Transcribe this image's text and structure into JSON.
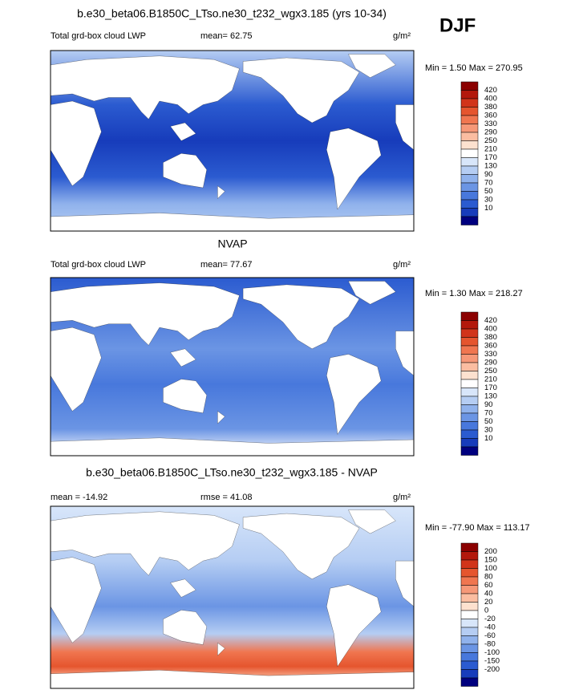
{
  "season": "DJF",
  "panels": [
    {
      "title": "b.e30_beta06.B1850C_LTso.ne30_t232_wgx3.185 (yrs 10-34)",
      "field": "Total grd-box cloud LWP",
      "stat": "mean=  62.75",
      "units": "g/m²",
      "minmax": "Min =   1.50 Max = 270.95",
      "colorbar": {
        "labels": [
          "420",
          "400",
          "380",
          "360",
          "330",
          "290",
          "250",
          "210",
          "170",
          "130",
          "90",
          "70",
          "50",
          "30",
          "10"
        ],
        "colors": [
          "#8b0000",
          "#b3180c",
          "#d1341a",
          "#e5552e",
          "#f07650",
          "#f69878",
          "#fbbda1",
          "#fde1cf",
          "#ffffff",
          "#d8e6fa",
          "#b5cdf3",
          "#90b2ec",
          "#6b95e4",
          "#4878dc",
          "#2b5bd0",
          "#173cbb",
          "#00007f"
        ]
      }
    },
    {
      "title": "NVAP",
      "field": "Total grd-box cloud LWP",
      "stat": "mean=  77.67",
      "units": "g/m²",
      "minmax": "Min =   1.30 Max = 218.27",
      "colorbar": {
        "labels": [
          "420",
          "400",
          "380",
          "360",
          "330",
          "290",
          "250",
          "210",
          "170",
          "130",
          "90",
          "70",
          "50",
          "30",
          "10"
        ],
        "colors": [
          "#8b0000",
          "#b3180c",
          "#d1341a",
          "#e5552e",
          "#f07650",
          "#f69878",
          "#fbbda1",
          "#fde1cf",
          "#ffffff",
          "#d8e6fa",
          "#b5cdf3",
          "#90b2ec",
          "#6b95e4",
          "#4878dc",
          "#2b5bd0",
          "#173cbb",
          "#00007f"
        ]
      }
    },
    {
      "title": "b.e30_beta06.B1850C_LTso.ne30_t232_wgx3.185 - NVAP",
      "field": "mean = -14.92",
      "stat": "rmse =  41.08",
      "units": "g/m²",
      "minmax": "Min = -77.90 Max = 113.17",
      "colorbar": {
        "labels": [
          "200",
          "150",
          "100",
          "80",
          "60",
          "40",
          "20",
          "0",
          "-20",
          "-40",
          "-60",
          "-80",
          "-100",
          "-150",
          "-200"
        ],
        "colors": [
          "#8b0000",
          "#b3180c",
          "#d1341a",
          "#e5552e",
          "#f07650",
          "#f69878",
          "#fbbda1",
          "#fde1cf",
          "#ffffff",
          "#d8e6fa",
          "#b5cdf3",
          "#90b2ec",
          "#6b95e4",
          "#4878dc",
          "#2b5bd0",
          "#173cbb",
          "#00007f"
        ]
      }
    }
  ]
}
